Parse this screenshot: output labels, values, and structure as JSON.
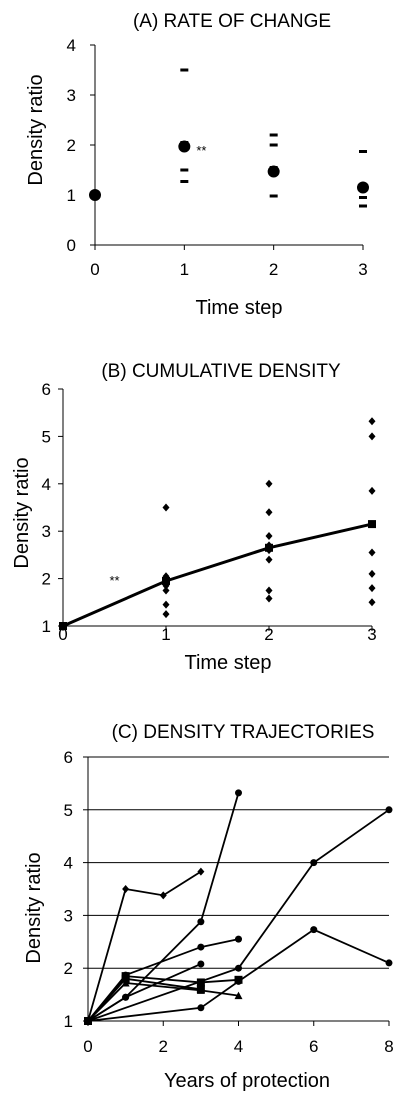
{
  "chart_data": [
    {
      "type": "scatter",
      "title": "(A) RATE OF CHANGE",
      "xlabel": "Time step",
      "ylabel": "Density ratio",
      "xlim": [
        0,
        3
      ],
      "ylim": [
        0,
        4
      ],
      "x_ticks": [
        "0",
        "1",
        "2",
        "3"
      ],
      "y_ticks": [
        "0",
        "1",
        "2",
        "3",
        "4"
      ],
      "grid": false,
      "series": [
        {
          "marker": "circle",
          "x": [
            0,
            1,
            2,
            3
          ],
          "values": [
            1.0,
            1.97,
            1.47,
            1.15
          ]
        }
      ],
      "point_values": [
        {
          "x": 1,
          "values": [
            3.5,
            2.05,
            1.95,
            1.5,
            1.27
          ]
        },
        {
          "x": 2,
          "values": [
            2.2,
            2.0,
            1.55,
            0.98
          ]
        },
        {
          "x": 3,
          "values": [
            1.87,
            1.17,
            0.95,
            0.78
          ]
        }
      ],
      "annotations": [
        {
          "text": "**",
          "x": 1,
          "y": 1.9
        }
      ]
    },
    {
      "type": "line",
      "title": "(B) CUMULATIVE DENSITY",
      "xlabel": "Time step",
      "ylabel": "Density ratio",
      "xlim": [
        0,
        3
      ],
      "ylim": [
        1,
        6
      ],
      "x_ticks": [
        "0",
        "1",
        "2",
        "3"
      ],
      "y_ticks": [
        "1",
        "2",
        "3",
        "4",
        "5",
        "6"
      ],
      "grid": false,
      "series": [
        {
          "marker": "square",
          "x": [
            0,
            1,
            2,
            3
          ],
          "values": [
            1.0,
            1.95,
            2.65,
            3.15
          ]
        }
      ],
      "point_values": [
        {
          "x": 1,
          "values": [
            3.5,
            2.05,
            2.0,
            1.95,
            1.85,
            1.75,
            1.45,
            1.25
          ]
        },
        {
          "x": 2,
          "values": [
            4.0,
            3.4,
            2.9,
            2.7,
            2.6,
            2.4,
            1.75,
            1.58
          ]
        },
        {
          "x": 3,
          "values": [
            5.32,
            5.0,
            3.85,
            3.15,
            2.55,
            2.1,
            1.8,
            1.5
          ]
        }
      ],
      "annotations": [
        {
          "text": "**",
          "x": 0.5,
          "y": 1.97
        }
      ]
    },
    {
      "type": "line",
      "title": "(C) DENSITY TRAJECTORIES",
      "xlabel": "Years of protection",
      "ylabel": "Density ratio",
      "xlim": [
        0,
        8
      ],
      "ylim": [
        1,
        6
      ],
      "x_ticks": [
        "0",
        "2",
        "4",
        "6",
        "8"
      ],
      "y_ticks": [
        "1",
        "2",
        "3",
        "4",
        "5",
        "6"
      ],
      "grid": true,
      "series": [
        {
          "marker": "diamond",
          "x": [
            0,
            1,
            2,
            3
          ],
          "values": [
            1.0,
            3.5,
            3.38,
            3.83
          ]
        },
        {
          "marker": "circle",
          "x": [
            0,
            1,
            3,
            4
          ],
          "values": [
            1.0,
            1.45,
            2.88,
            5.32
          ]
        },
        {
          "marker": "circle",
          "x": [
            0,
            4,
            6,
            8
          ],
          "values": [
            1.0,
            2.0,
            4.0,
            5.0
          ]
        },
        {
          "marker": "circle",
          "x": [
            0,
            3,
            4,
            6,
            8
          ],
          "values": [
            1.0,
            1.25,
            1.75,
            2.73,
            2.1
          ]
        },
        {
          "marker": "circle",
          "x": [
            0,
            1,
            3,
            4
          ],
          "values": [
            1.0,
            1.87,
            2.4,
            2.55
          ]
        },
        {
          "marker": "circle",
          "x": [
            0,
            1,
            3
          ],
          "values": [
            1.0,
            1.45,
            2.08
          ]
        },
        {
          "marker": "square",
          "x": [
            0,
            1,
            3,
            4
          ],
          "values": [
            1.0,
            1.85,
            1.73,
            1.78
          ]
        },
        {
          "marker": "square",
          "x": [
            0,
            1,
            3
          ],
          "values": [
            1.0,
            1.8,
            1.6
          ]
        },
        {
          "marker": "triangle",
          "x": [
            0,
            1,
            3,
            4
          ],
          "values": [
            1.0,
            1.72,
            1.58,
            1.48
          ]
        }
      ]
    }
  ]
}
